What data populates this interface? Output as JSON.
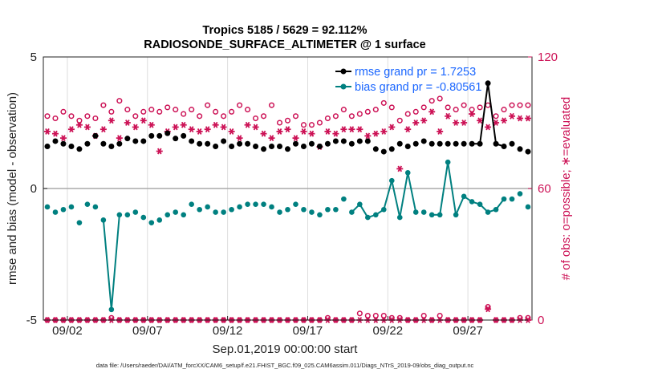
{
  "chart_data": {
    "type": "line",
    "title_line1": "Tropics 5185 / 5629 = 92.112%",
    "title_line2": "RADIOSONDE_SURFACE_ALTIMETER @ 1 surface",
    "ylabel_left": "rmse and bias (model - observation)",
    "ylabel_right": "# of obs: o=possible; ∗=evaluated",
    "xlabel": "Sep.01,2019 00:00:00 start",
    "footnote": "data file: /Users/raeder/DAI/ATM_forcXX/CAM6_setup/f.e21.FHIST_BGC.f09_025.CAM6assim.011/Diags_NTrS_2019-09/obs_diag_output.nc",
    "ylim_left": [
      -5,
      5
    ],
    "ylim_right": [
      0,
      120
    ],
    "xlim": [
      0.5,
      31.0
    ],
    "left_ticks": [
      "-5",
      "0",
      "5"
    ],
    "right_ticks": [
      "0",
      "60",
      "120"
    ],
    "xticks": [
      {
        "x": 2,
        "label": "09/02"
      },
      {
        "x": 7,
        "label": "09/07"
      },
      {
        "x": 12,
        "label": "09/12"
      },
      {
        "x": 17,
        "label": "09/17"
      },
      {
        "x": 22,
        "label": "09/22"
      },
      {
        "x": 27,
        "label": "09/27"
      }
    ],
    "legend": {
      "placement": "top-right",
      "rmse_label": "rmse grand pr = 1.7253",
      "bias_label": "bias grand pr = -0.80561"
    },
    "colors": {
      "rmse": "#000000",
      "bias": "#008080",
      "obs": "#cc1155",
      "axis": "#222222",
      "grid": "#dddddd",
      "zero": "#aaaaaa",
      "legend_text": "#1a66ff"
    },
    "x": [
      0.75,
      1.25,
      1.75,
      2.25,
      2.75,
      3.25,
      3.75,
      4.25,
      4.75,
      5.25,
      5.75,
      6.25,
      6.75,
      7.25,
      7.75,
      8.25,
      8.75,
      9.25,
      9.75,
      10.25,
      10.75,
      11.25,
      11.75,
      12.25,
      12.75,
      13.25,
      13.75,
      14.25,
      14.75,
      15.25,
      15.75,
      16.25,
      16.75,
      17.25,
      17.75,
      18.25,
      18.75,
      19.25,
      19.75,
      20.25,
      20.75,
      21.25,
      21.75,
      22.25,
      22.75,
      23.25,
      23.75,
      24.25,
      24.75,
      25.25,
      25.75,
      26.25,
      26.75,
      27.25,
      27.75,
      28.25,
      28.75,
      29.25,
      29.75,
      30.25,
      30.75
    ],
    "series": [
      {
        "name": "rmse",
        "values": [
          1.6,
          1.8,
          1.7,
          1.6,
          1.5,
          1.7,
          2.0,
          1.7,
          1.6,
          1.7,
          1.9,
          1.8,
          1.8,
          2.0,
          2.0,
          2.1,
          1.9,
          2.0,
          1.8,
          1.7,
          1.7,
          1.6,
          1.8,
          1.6,
          1.7,
          1.7,
          1.6,
          1.5,
          1.6,
          1.6,
          1.5,
          1.7,
          1.6,
          1.7,
          1.6,
          1.7,
          1.8,
          1.8,
          1.7,
          1.8,
          1.8,
          1.5,
          1.4,
          1.5,
          1.7,
          1.6,
          1.7,
          1.8,
          1.7,
          1.7,
          1.7,
          1.7,
          1.7,
          1.7,
          1.7,
          4.0,
          1.7,
          1.6,
          1.7,
          1.5,
          1.4
        ]
      },
      {
        "name": "bias",
        "values": [
          -0.7,
          -0.9,
          -0.8,
          -0.7,
          -1.3,
          -0.6,
          -0.7,
          -1.2,
          -4.6,
          -1.0,
          -1.0,
          -0.9,
          -1.1,
          -1.3,
          -1.2,
          -1.0,
          -0.9,
          -1.0,
          -0.6,
          -0.8,
          -0.7,
          -0.9,
          -0.9,
          -0.8,
          -0.7,
          -0.6,
          -0.6,
          -0.6,
          -0.7,
          -0.9,
          -0.8,
          -0.6,
          -0.8,
          -0.9,
          -1.0,
          -0.8,
          -0.8,
          -0.4,
          -0.9,
          -0.6,
          -1.1,
          -1.0,
          -0.8,
          0.3,
          -1.1,
          0.6,
          -0.9,
          -0.9,
          -1.0,
          -1.0,
          1.0,
          -1.0,
          -0.3,
          -0.5,
          -0.6,
          -0.9,
          -0.8,
          -0.4,
          -0.4,
          -0.2,
          -0.7
        ]
      },
      {
        "name": "possible_obs",
        "values": [
          93,
          92,
          95,
          93,
          91,
          93,
          92,
          98,
          95,
          100,
          96,
          93,
          95,
          96,
          95,
          97,
          96,
          94,
          96,
          93,
          98,
          95,
          93,
          95,
          98,
          96,
          92,
          93,
          98,
          90,
          91,
          93,
          89,
          89,
          90,
          92,
          93,
          96,
          93,
          94,
          95,
          96,
          99,
          97,
          91,
          94,
          95,
          97,
          100,
          101,
          97,
          96,
          98,
          96,
          97,
          98,
          93,
          96,
          98,
          98,
          98
        ]
      },
      {
        "name": "evaluated_obs",
        "values": [
          86,
          85,
          83,
          87,
          89,
          88,
          84,
          87,
          91,
          83,
          90,
          88,
          91,
          89,
          77,
          86,
          88,
          89,
          87,
          86,
          87,
          89,
          88,
          86,
          83,
          89,
          88,
          85,
          83,
          86,
          87,
          83,
          86,
          85,
          79,
          86,
          85,
          87,
          87,
          87,
          84,
          85,
          86,
          88,
          69,
          87,
          90,
          91,
          95,
          86,
          93,
          90,
          90,
          94,
          91,
          88,
          90,
          91,
          93,
          92,
          92
        ]
      },
      {
        "name": "possible_obs_bottom",
        "values": [
          0,
          0,
          0,
          0,
          0,
          0,
          0,
          0,
          1,
          0,
          0,
          0,
          0,
          0,
          0,
          0,
          0,
          0,
          0,
          0,
          0,
          0,
          0,
          0,
          0,
          0,
          0,
          0,
          0,
          0,
          0,
          0,
          0,
          0,
          0,
          1,
          0,
          0,
          0,
          3,
          2,
          2,
          2,
          1,
          1,
          0,
          0,
          2,
          0,
          2,
          0,
          0,
          0,
          0,
          0,
          6,
          0,
          0,
          0,
          1,
          1
        ]
      },
      {
        "name": "evaluated_obs_bottom",
        "values": [
          0,
          0,
          0,
          0,
          0,
          0,
          0,
          0,
          0,
          0,
          0,
          0,
          0,
          0,
          0,
          0,
          0,
          0,
          0,
          0,
          0,
          0,
          0,
          0,
          0,
          0,
          0,
          0,
          0,
          0,
          0,
          0,
          0,
          0,
          0,
          0,
          0,
          0,
          0,
          0,
          0,
          0,
          0,
          0,
          0,
          0,
          0,
          0,
          0,
          0,
          0,
          0,
          0,
          0,
          0,
          5,
          0,
          0,
          0,
          0,
          0
        ]
      }
    ]
  }
}
